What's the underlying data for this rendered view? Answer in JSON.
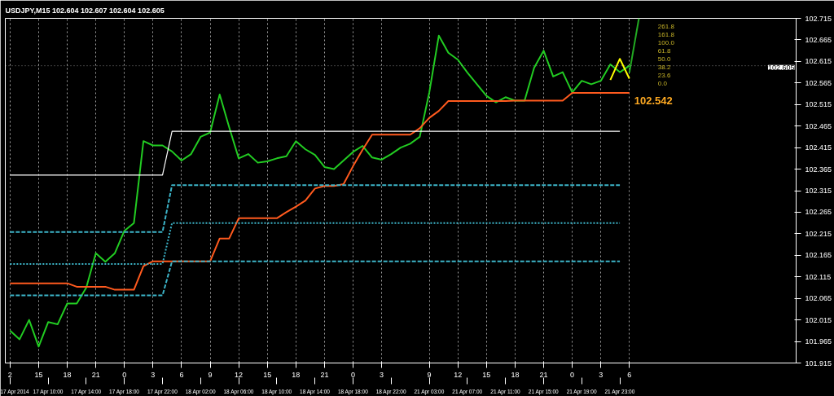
{
  "chart_data": {
    "type": "line",
    "title": "USDJPY,M15  102.604 102.607 102.604 102.605",
    "ylim": [
      101.915,
      102.715
    ],
    "yticks": [
      101.915,
      101.965,
      102.015,
      102.065,
      102.115,
      102.165,
      102.215,
      102.265,
      102.315,
      102.365,
      102.415,
      102.465,
      102.515,
      102.565,
      102.615,
      102.665,
      102.715
    ],
    "categories": [
      "2",
      null,
      null,
      "15",
      null,
      null,
      "18",
      null,
      null,
      "21",
      null,
      null,
      "0",
      null,
      null,
      "3",
      null,
      null,
      "6",
      null,
      null,
      "9",
      null,
      null,
      "12",
      null,
      null,
      "15",
      null,
      null,
      "18",
      null,
      null,
      "21",
      null,
      null,
      "0",
      null,
      null,
      "3",
      null,
      null,
      null,
      null,
      "9",
      null,
      null,
      "12",
      null,
      null,
      "15",
      null,
      null,
      "18",
      null,
      null,
      "21",
      null,
      null,
      "0",
      null,
      null,
      "3",
      null,
      null,
      "6",
      null
    ],
    "grid": "x",
    "series": [
      {
        "color": "#22cc22",
        "values": [
          101.99,
          101.97,
          102.015,
          101.953,
          102.01,
          102.005,
          102.053,
          102.053,
          102.09,
          102.17,
          102.15,
          102.17,
          102.222,
          102.24,
          102.43,
          102.42,
          102.42,
          102.406,
          102.385,
          102.4,
          102.44,
          102.45,
          102.538,
          102.462,
          102.39,
          102.4,
          102.38,
          102.383,
          102.39,
          102.395,
          102.43,
          102.411,
          102.398,
          102.37,
          102.365,
          102.385,
          102.405,
          102.419,
          102.392,
          102.387,
          102.4,
          102.415,
          102.424,
          102.44,
          102.543,
          102.675,
          102.635,
          102.619,
          102.589,
          102.562,
          102.535,
          102.52,
          102.532,
          102.524,
          102.524,
          102.6,
          102.64,
          102.58,
          102.59,
          102.543,
          102.57,
          102.562,
          102.57,
          102.608,
          102.59,
          102.605,
          null
        ]
      },
      {
        "color": "#ff5a1e",
        "values": [
          102.1,
          102.1,
          102.1,
          102.1,
          102.1,
          102.1,
          102.1,
          102.092,
          102.092,
          102.092,
          102.092,
          102.085,
          102.085,
          102.085,
          102.14,
          102.151,
          102.151,
          102.151,
          102.151,
          102.151,
          102.151,
          102.151,
          102.204,
          102.204,
          102.251,
          102.251,
          102.251,
          102.251,
          102.251,
          102.265,
          102.278,
          102.292,
          102.32,
          102.326,
          102.326,
          102.33,
          102.372,
          102.41,
          102.445,
          102.445,
          102.445,
          102.445,
          102.445,
          102.46,
          102.484,
          102.5,
          102.523,
          102.523,
          102.523,
          102.523,
          102.523,
          102.523,
          102.523,
          102.524,
          102.524,
          102.524,
          102.524,
          102.524,
          102.524,
          102.542,
          102.542,
          102.542,
          102.542,
          102.542,
          102.542,
          102.542,
          null
        ]
      },
      {
        "color": "#ffffff",
        "values": [
          102.351,
          102.351,
          102.351,
          102.351,
          102.351,
          102.351,
          102.351,
          102.351,
          102.351,
          102.351,
          102.351,
          102.351,
          102.351,
          102.351,
          102.351,
          102.351,
          102.351,
          102.453,
          102.453,
          102.453,
          102.453,
          102.453,
          102.453,
          102.453,
          102.453,
          102.453,
          102.453,
          102.453,
          102.453,
          102.453,
          102.453,
          102.453,
          102.453,
          102.453,
          102.453,
          102.453,
          102.453,
          102.453,
          102.453,
          102.453,
          102.453,
          102.453,
          102.453,
          102.453,
          102.453,
          102.453,
          102.453,
          102.453,
          102.453,
          102.453,
          102.453,
          102.453,
          102.453,
          102.453,
          102.453,
          102.453,
          102.453,
          102.453,
          102.453,
          102.453,
          102.453,
          102.453,
          102.453,
          102.453,
          102.453,
          null,
          null
        ]
      },
      {
        "color": "#3cb4c8",
        "line_style": "dashed",
        "values": [
          102.219,
          102.219,
          102.219,
          102.219,
          102.219,
          102.219,
          102.219,
          102.219,
          102.219,
          102.219,
          102.219,
          102.219,
          102.219,
          102.219,
          102.219,
          102.219,
          102.219,
          102.328,
          102.328,
          102.328,
          102.328,
          102.328,
          102.328,
          102.328,
          102.328,
          102.328,
          102.328,
          102.328,
          102.328,
          102.328,
          102.328,
          102.328,
          102.328,
          102.328,
          102.328,
          102.328,
          102.328,
          102.328,
          102.328,
          102.328,
          102.328,
          102.328,
          102.328,
          102.328,
          102.328,
          102.328,
          102.328,
          102.328,
          102.328,
          102.328,
          102.328,
          102.328,
          102.328,
          102.328,
          102.328,
          102.328,
          102.328,
          102.328,
          102.328,
          102.328,
          102.328,
          102.328,
          102.328,
          102.328,
          102.328,
          null,
          null
        ]
      },
      {
        "color": "#3cb4c8",
        "line_style": "dotted",
        "values": [
          102.145,
          102.145,
          102.145,
          102.145,
          102.145,
          102.145,
          102.145,
          102.145,
          102.145,
          102.145,
          102.145,
          102.145,
          102.145,
          102.145,
          102.145,
          102.145,
          102.145,
          102.24,
          102.24,
          102.24,
          102.24,
          102.24,
          102.24,
          102.24,
          102.24,
          102.24,
          102.24,
          102.24,
          102.24,
          102.24,
          102.24,
          102.24,
          102.24,
          102.24,
          102.24,
          102.24,
          102.24,
          102.24,
          102.24,
          102.24,
          102.24,
          102.24,
          102.24,
          102.24,
          102.24,
          102.24,
          102.24,
          102.24,
          102.24,
          102.24,
          102.24,
          102.24,
          102.24,
          102.24,
          102.24,
          102.24,
          102.24,
          102.24,
          102.24,
          102.24,
          102.24,
          102.24,
          102.24,
          102.24,
          102.24,
          null,
          null
        ]
      },
      {
        "color": "#3cb4c8",
        "line_style": "dashed",
        "values": [
          102.072,
          102.072,
          102.072,
          102.072,
          102.072,
          102.072,
          102.072,
          102.072,
          102.072,
          102.072,
          102.072,
          102.072,
          102.072,
          102.072,
          102.072,
          102.072,
          102.072,
          102.151,
          102.151,
          102.151,
          102.151,
          102.151,
          102.151,
          102.151,
          102.151,
          102.151,
          102.151,
          102.151,
          102.151,
          102.151,
          102.151,
          102.151,
          102.151,
          102.151,
          102.151,
          102.151,
          102.151,
          102.151,
          102.151,
          102.151,
          102.151,
          102.151,
          102.151,
          102.151,
          102.151,
          102.151,
          102.151,
          102.151,
          102.151,
          102.151,
          102.151,
          102.151,
          102.151,
          102.151,
          102.151,
          102.151,
          102.151,
          102.151,
          102.151,
          102.151,
          102.151,
          102.151,
          102.151,
          102.151,
          102.151,
          null,
          null
        ]
      },
      {
        "color": "#ffff00",
        "values": [
          null,
          null,
          null,
          null,
          null,
          null,
          null,
          null,
          null,
          null,
          null,
          null,
          null,
          null,
          null,
          null,
          null,
          null,
          null,
          null,
          null,
          null,
          null,
          null,
          null,
          null,
          null,
          null,
          null,
          null,
          null,
          null,
          null,
          null,
          null,
          null,
          null,
          null,
          null,
          null,
          null,
          null,
          null,
          null,
          null,
          null,
          null,
          null,
          null,
          null,
          null,
          null,
          null,
          null,
          null,
          null,
          null,
          null,
          null,
          null,
          null,
          null,
          null,
          102.572,
          102.621,
          102.575,
          null
        ]
      },
      {
        "color": "#22aa22",
        "values": [
          null,
          null,
          null,
          null,
          null,
          null,
          null,
          null,
          null,
          null,
          null,
          null,
          null,
          null,
          null,
          null,
          null,
          null,
          null,
          null,
          null,
          null,
          null,
          null,
          null,
          null,
          null,
          null,
          null,
          null,
          null,
          null,
          null,
          null,
          null,
          null,
          null,
          null,
          null,
          null,
          null,
          null,
          null,
          null,
          null,
          null,
          null,
          null,
          null,
          null,
          null,
          null,
          null,
          null,
          null,
          null,
          null,
          null,
          null,
          null,
          null,
          null,
          null,
          null,
          null,
          102.589,
          102.715
        ]
      }
    ],
    "ref_lines": [
      {
        "axis": "y",
        "value": 102.605,
        "label": "102.605",
        "color": "#ffffff"
      }
    ],
    "annotations": [
      "102.542",
      "261.8",
      "161.8",
      "100.0",
      "61.8",
      "50.0",
      "38.2",
      "23.6",
      "0.0",
      "17 Apr 2014",
      "17 Apr 10:00",
      "17 Apr 14:00",
      "17 Apr 18:00",
      "17 Apr 22:00",
      "18 Apr 02:00",
      "18 Apr 06:00",
      "18 Apr 10:00",
      "18 Apr 14:00",
      "18 Apr 18:00",
      "18 Apr 22:00",
      "21 Apr 03:00",
      "21 Apr 07:00",
      "21 Apr 11:00",
      "21 Apr 15:00",
      "21 Apr 19:00",
      "21 Apr 23:00"
    ]
  }
}
